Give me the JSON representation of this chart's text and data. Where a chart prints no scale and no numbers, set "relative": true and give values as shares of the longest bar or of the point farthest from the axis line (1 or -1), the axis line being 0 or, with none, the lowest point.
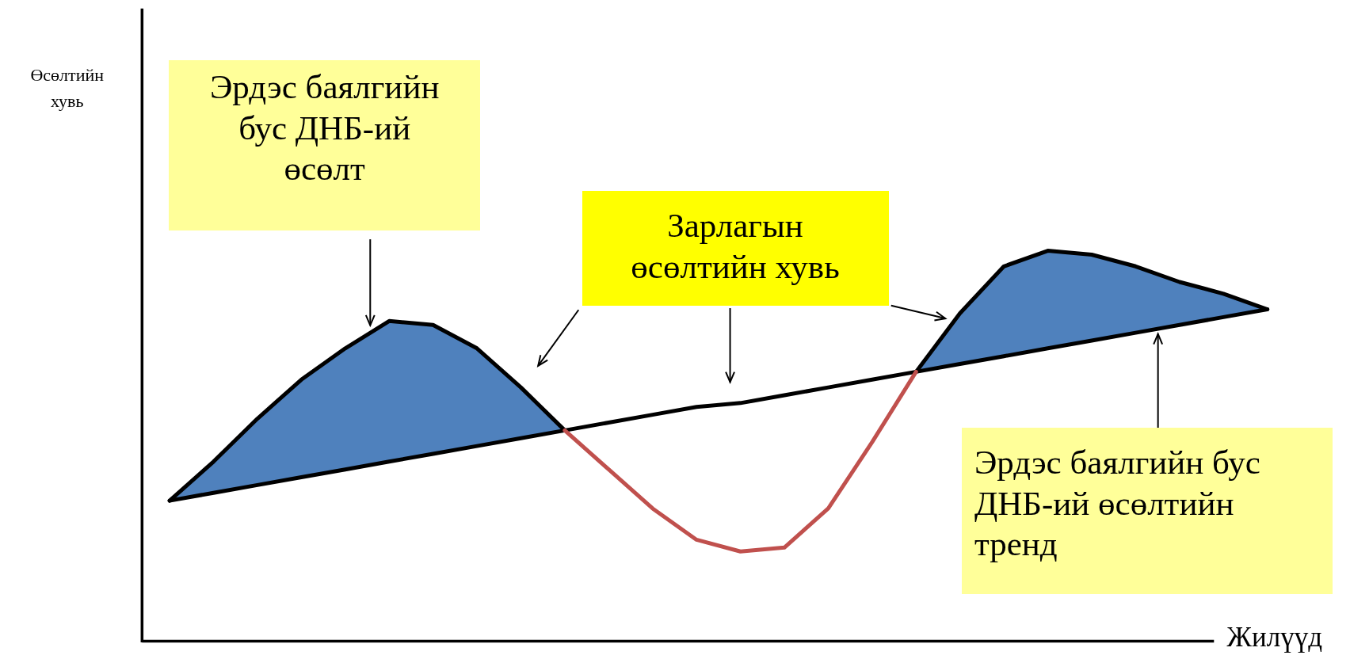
{
  "chart_data": {
    "type": "line",
    "relative": true,
    "marker": "none",
    "xlabel": "Жилүүд",
    "categories": [
      null,
      null,
      null,
      null,
      null,
      null,
      null,
      null,
      null,
      null,
      null,
      null,
      null,
      null,
      null,
      null,
      null,
      null,
      null,
      null,
      null,
      null,
      null,
      null,
      null,
      null
    ],
    "series": [
      {
        "color": "#000000",
        "values": [
          0.36,
          0.38,
          0.4,
          0.42,
          0.44,
          0.46,
          0.48,
          0.5,
          0.52,
          0.54,
          0.56,
          0.58,
          0.6,
          0.61,
          0.63,
          0.65,
          0.67,
          0.69,
          0.71,
          0.73,
          0.75,
          0.77,
          0.79,
          0.81,
          0.83,
          0.85
        ]
      },
      {
        "type": "area",
        "color": "#4f81bd",
        "values": [
          0.36,
          0.46,
          0.57,
          0.67,
          0.75,
          0.82,
          0.81,
          0.75,
          0.65,
          0.54,
          null,
          null,
          null,
          null,
          null,
          null,
          null,
          0.69,
          0.84,
          0.96,
          1,
          0.99,
          0.96,
          0.92,
          0.89,
          0.85
        ]
      },
      {
        "color": "#c0504d",
        "values": [
          null,
          null,
          null,
          null,
          null,
          null,
          null,
          null,
          null,
          0.54,
          0.44,
          0.34,
          0.26,
          0.23,
          0.24,
          0.34,
          0.51,
          0.69,
          null,
          null,
          null,
          null,
          null,
          null,
          null,
          null
        ]
      }
    ],
    "annotations": [
      "Өсөлтийн хувь",
      "Эрдэс баялгийн бус ДНБ-ий өсөлт",
      "Зарлагын өсөлтийн хувь",
      "Эрдэс баялгийн бус ДНБ-ий өсөлтийн тренд"
    ]
  }
}
